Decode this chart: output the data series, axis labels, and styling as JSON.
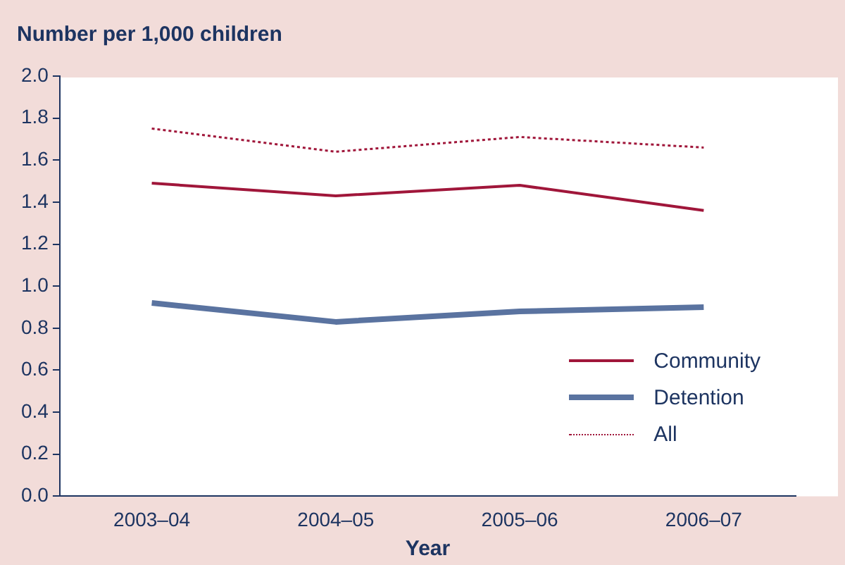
{
  "chart_data": {
    "type": "line",
    "title": "Number per 1,000 children",
    "xlabel": "Year",
    "categories": [
      "2003–04",
      "2004–05",
      "2005–06",
      "2006–07"
    ],
    "series": [
      {
        "name": "Community",
        "color": "#a0163a",
        "values": [
          1.49,
          1.43,
          1.48,
          1.36
        ],
        "line_style": "solid"
      },
      {
        "name": "Detention",
        "color": "#5a73a0",
        "values": [
          0.92,
          0.83,
          0.88,
          0.9
        ],
        "line_style": "solid"
      },
      {
        "name": "All",
        "color": "#a0163a",
        "values": [
          1.75,
          1.64,
          1.71,
          1.66
        ],
        "line_style": "dotted"
      }
    ],
    "ylim": [
      0,
      2
    ],
    "yticks": [
      {
        "value": 0,
        "label": "0.0"
      },
      0.2,
      0.4,
      0.6,
      0.8,
      {
        "value": 1,
        "label": "1.0"
      },
      1.2,
      1.4,
      1.6,
      1.8,
      {
        "value": 2,
        "label": "2.0"
      }
    ],
    "grid": false,
    "legend": "bottom right",
    "marker": "none"
  }
}
